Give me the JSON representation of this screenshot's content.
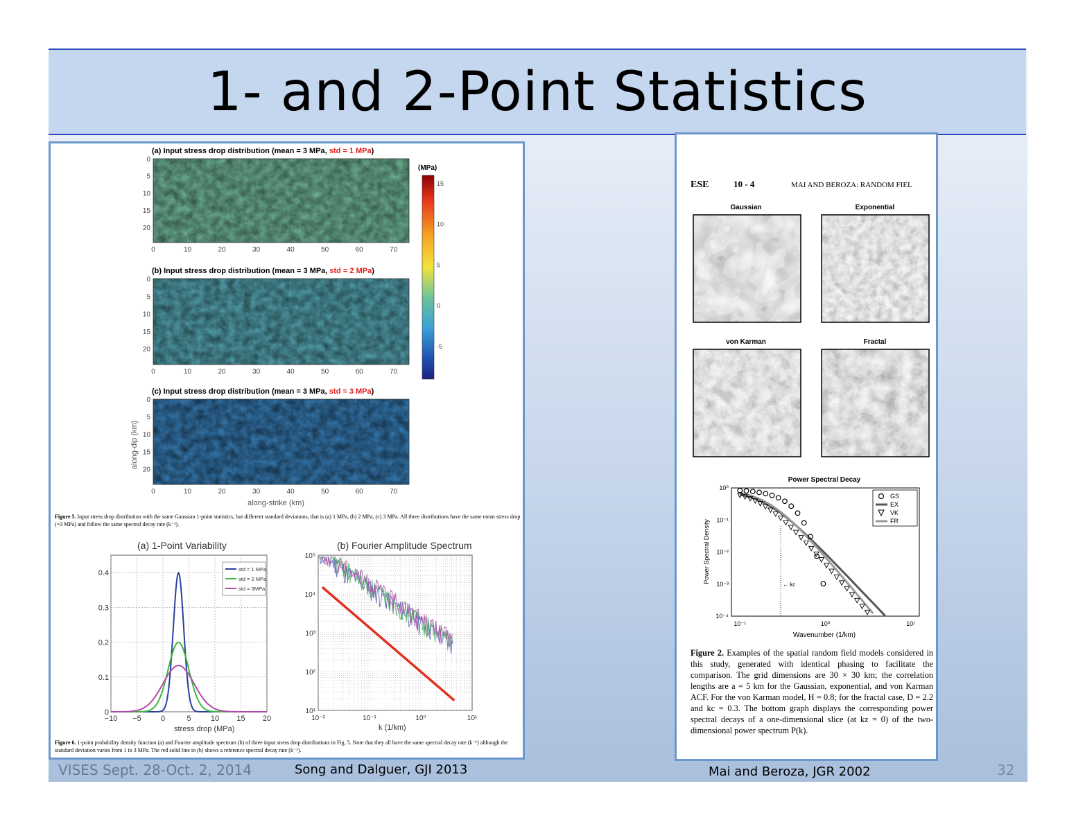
{
  "slide": {
    "title": "1- and 2-Point Statistics",
    "page_number": "32"
  },
  "footer": {
    "event": "VISES Sept. 28-Oct. 2, 2014",
    "ref_left": "Song and Dalguer, GJI 2013",
    "ref_right": "Mai and Beroza, JGR 2002"
  },
  "left_figure": {
    "maps": [
      {
        "title_black": "(a) Input stress drop distribution (mean = 3 MPa, ",
        "title_red": "std = 1 MPa",
        "title_end": ")"
      },
      {
        "title_black": "(b) Input stress drop distribution (mean = 3 MPa, ",
        "title_red": "std = 2 MPa",
        "title_end": ")"
      },
      {
        "title_black": "(c) Input stress drop distribution (mean = 3 MPa, ",
        "title_red": "std = 3 MPa",
        "title_end": ")"
      }
    ],
    "map_y_ticks": [
      "0",
      "5",
      "10",
      "15",
      "20"
    ],
    "map_x_ticks": [
      "0",
      "10",
      "20",
      "30",
      "40",
      "50",
      "60",
      "70"
    ],
    "map_xlabel": "along-strike (km)",
    "map_ylabel": "along-dip (km)",
    "colorbar": {
      "unit": "(MPa)",
      "ticks": [
        "15",
        "10",
        "5",
        "0",
        "-5"
      ],
      "colors": [
        "#8b0000",
        "#e8351c",
        "#f5a623",
        "#f2e33a",
        "#6cc49a",
        "#3aa0d8",
        "#2050b0",
        "#1a237e"
      ]
    },
    "fig5_caption_label": "Figure 5.",
    "fig5_caption": "Input stress drop distribution with the same Gaussian 1-point statistics, but different standard deviations, that is (a) 1 MPa, (b) 2 MPa, (c) 3 MPa. All three distributions have the same mean stress drop (=3 MPa) and follow the same spectral decay rate (k⁻¹).",
    "fig6_caption_label": "Figure 6.",
    "fig6_caption": "1-point probability density function (a) and Fourier amplitude spectrum (b) of three input stress drop distributions in Fig. 5. Note that they all have the same spectral decay rate (k⁻¹) although the standard deviation varies from 1 to 3 MPa. The red solid line in (b) shows a reference spectral decay rate (k⁻¹)."
  },
  "chart_data": [
    {
      "type": "line",
      "title": "(a) 1-Point Variability",
      "xlabel": "stress drop (MPa)",
      "ylabel": "",
      "xlim": [
        -10,
        20
      ],
      "ylim": [
        0,
        0.45
      ],
      "x_ticks": [
        "−10",
        "−5",
        "0",
        "5",
        "10",
        "15",
        "20"
      ],
      "y_ticks": [
        "0",
        "0.1",
        "0.2",
        "0.3",
        "0.4"
      ],
      "grid": true,
      "legend_position": "top-right",
      "series": [
        {
          "name": "std = 1 MPa",
          "color": "#2b3f9e",
          "mean": 3,
          "std": 1
        },
        {
          "name": "std = 2 MPa",
          "color": "#3cb83c",
          "mean": 3,
          "std": 2
        },
        {
          "name": "std = 3MPa",
          "color": "#b04aa8",
          "mean": 3,
          "std": 3
        }
      ]
    },
    {
      "type": "line",
      "title": "(b) Fourier Amplitude Spectrum",
      "xlabel": "k (1/km)",
      "ylabel": "",
      "x_log": true,
      "y_log": true,
      "x_ticks": [
        "10⁻²",
        "10⁻¹",
        "10⁰",
        "10¹"
      ],
      "y_ticks": [
        "10¹",
        "10²",
        "10³",
        "10⁴",
        "10⁵"
      ],
      "grid": true,
      "reference_line": {
        "color": "#e03020",
        "slope": -1,
        "x": [
          0.012,
          4.5
        ],
        "y": [
          15000,
          18
        ]
      }
    },
    {
      "type": "scatter",
      "title": "Power Spectral Decay",
      "xlabel": "Wavenumber (1/km)",
      "ylabel": "Power Spectral Density",
      "x_log": true,
      "y_log": true,
      "x_ticks": [
        "10⁻¹",
        "10⁰",
        "10¹"
      ],
      "y_ticks": [
        "10⁰",
        "10⁻¹",
        "10⁻²",
        "10⁻³",
        "10⁻⁴"
      ],
      "kc_label": "← kc",
      "legend_position": "top-right",
      "series": [
        {
          "name": "GS",
          "marker": "circle"
        },
        {
          "name": "EX",
          "marker": "line"
        },
        {
          "name": "VK",
          "marker": "triangle"
        },
        {
          "name": "FR",
          "marker": "line"
        }
      ]
    }
  ],
  "right_figure": {
    "header_journal": "ESE",
    "header_page": "10 - 4",
    "header_running": "MAI AND BEROZA: RANDOM FIEL",
    "field_labels": [
      "Gaussian",
      "Exponential",
      "von Karman",
      "Fractal"
    ],
    "fig2_caption_label": "Figure 2.",
    "fig2_caption": "Examples of the spatial random field models considered in this study, generated with identical phasing to facilitate the comparison. The grid dimensions are 30 × 30 km; the correlation lengths are a = 5 km for the Gaussian, exponential, and von Karman ACF. For the von Karman model, H = 0.8; for the fractal case, D = 2.2 and kc = 0.3. The bottom graph displays the corresponding power spectral decays of a one-dimensional slice (at kz = 0) of the two-dimensional power spectrum P(k)."
  }
}
